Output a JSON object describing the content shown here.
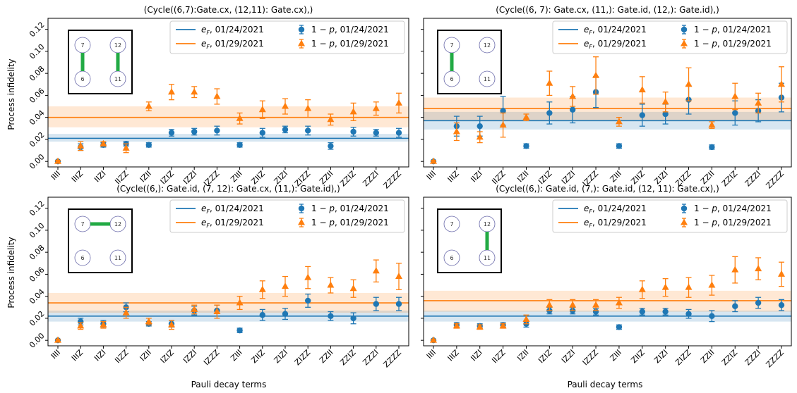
{
  "figure": {
    "xlabel": "Pauli decay terms",
    "ylabel": "Process infidelity",
    "colors": {
      "blue": "#1f77b4",
      "orange": "#ff7f0e",
      "coupler": "#22aa44",
      "qubit_edge": "#6a6aaa"
    }
  },
  "chart_data": [
    {
      "type": "scatter",
      "title": "(Cycle((6,7):Gate.cx, (12,11): Gate.cx),)",
      "xlabel": "",
      "ylabel": "Process infidelity",
      "ylim": [
        -0.005,
        0.13
      ],
      "yticks": [
        "0.00",
        "0.02",
        "0.04",
        "0.06",
        "0.08",
        "0.10",
        "0.12"
      ],
      "categories": [
        "IIII",
        "IIIZ",
        "IIZI",
        "IIZZ",
        "IZII",
        "IZIZ",
        "IZZI",
        "IZZZ",
        "ZIII",
        "ZIIZ",
        "ZIZI",
        "ZIZZ",
        "ZZII",
        "ZZIZ",
        "ZZZI",
        "ZZZZ"
      ],
      "legend": [
        "e_F, 01/24/2021",
        "e_F, 01/29/2021",
        "1 − p, 01/24/2021",
        "1 − p, 01/29/2021"
      ],
      "hlines": [
        {
          "name": "e_F, 01/24/2021",
          "value": 0.021,
          "band": [
            0.018,
            0.025
          ]
        },
        {
          "name": "e_F, 01/29/2021",
          "value": 0.04,
          "band": [
            0.031,
            0.05
          ]
        }
      ],
      "series": [
        {
          "name": "1 − p, 01/24/2021",
          "values": [
            0.0,
            0.013,
            0.015,
            0.016,
            0.015,
            0.026,
            0.027,
            0.028,
            0.015,
            0.026,
            0.029,
            0.028,
            0.014,
            0.027,
            0.026,
            0.026
          ],
          "errors": [
            0.001,
            0.003,
            0.002,
            0.002,
            0.002,
            0.003,
            0.003,
            0.004,
            0.002,
            0.004,
            0.003,
            0.004,
            0.003,
            0.004,
            0.003,
            0.004
          ]
        },
        {
          "name": "1 − p, 01/29/2021",
          "values": [
            0.0,
            0.014,
            0.016,
            0.012,
            0.05,
            0.063,
            0.063,
            0.059,
            0.039,
            0.047,
            0.05,
            0.048,
            0.038,
            0.045,
            0.048,
            0.053
          ],
          "errors": [
            0.001,
            0.004,
            0.002,
            0.004,
            0.004,
            0.007,
            0.005,
            0.007,
            0.005,
            0.008,
            0.007,
            0.008,
            0.005,
            0.008,
            0.006,
            0.009
          ]
        }
      ],
      "inset": {
        "qubits": [
          "7",
          "12",
          "6",
          "11"
        ],
        "couplers": [
          [
            0,
            2
          ],
          [
            1,
            3
          ]
        ]
      }
    },
    {
      "type": "scatter",
      "title": "(Cycle((6, 7): Gate.cx, (11,): Gate.id, (12,): Gate.id),)",
      "xlabel": "",
      "ylabel": "",
      "ylim": [
        -0.005,
        0.13
      ],
      "yticks": [
        "",
        "",
        "",
        "",
        "",
        "",
        ""
      ],
      "categories": [
        "IIII",
        "IIIZ",
        "IIZI",
        "IIZZ",
        "IZII",
        "IZIZ",
        "IZZI",
        "IZZZ",
        "ZIII",
        "ZIIZ",
        "ZIZI",
        "ZIZZ",
        "ZZII",
        "ZZIZ",
        "ZZZI",
        "ZZZZ"
      ],
      "legend": [
        "e_F, 01/24/2021",
        "e_F, 01/29/2021",
        "1 − p, 01/24/2021",
        "1 − p, 01/29/2021"
      ],
      "hlines": [
        {
          "name": "e_F, 01/24/2021",
          "value": 0.037,
          "band": [
            0.029,
            0.045
          ]
        },
        {
          "name": "e_F, 01/29/2021",
          "value": 0.048,
          "band": [
            0.037,
            0.058
          ]
        }
      ],
      "series": [
        {
          "name": "1 − p, 01/24/2021",
          "values": [
            0.0,
            0.032,
            0.032,
            0.046,
            0.014,
            0.044,
            0.047,
            0.063,
            0.014,
            0.042,
            0.043,
            0.056,
            0.013,
            0.044,
            0.046,
            0.058
          ],
          "errors": [
            0.001,
            0.009,
            0.009,
            0.013,
            0.002,
            0.01,
            0.012,
            0.014,
            0.002,
            0.01,
            0.009,
            0.013,
            0.002,
            0.011,
            0.01,
            0.013
          ]
        },
        {
          "name": "1 − p, 01/29/2021",
          "values": [
            0.0,
            0.027,
            0.022,
            0.033,
            0.04,
            0.071,
            0.059,
            0.078,
            0.036,
            0.065,
            0.054,
            0.07,
            0.033,
            0.059,
            0.053,
            0.07
          ],
          "errors": [
            0.001,
            0.008,
            0.005,
            0.011,
            0.003,
            0.011,
            0.009,
            0.017,
            0.004,
            0.012,
            0.009,
            0.015,
            0.003,
            0.012,
            0.009,
            0.016
          ]
        }
      ],
      "inset": {
        "qubits": [
          "7",
          "12",
          "6",
          "11"
        ],
        "couplers": [
          [
            0,
            2
          ]
        ]
      }
    },
    {
      "type": "scatter",
      "title": "(Cycle((6,): Gate.id, (7, 12): Gate.cx, (11,): Gate.id),)",
      "xlabel": "Pauli decay terms",
      "ylabel": "Process infidelity",
      "ylim": [
        -0.005,
        0.13
      ],
      "yticks": [
        "0.00",
        "0.02",
        "0.04",
        "0.06",
        "0.08",
        "0.10",
        "0.12"
      ],
      "categories": [
        "IIII",
        "IIIZ",
        "IIZI",
        "IIZZ",
        "IZII",
        "IZIZ",
        "IZZI",
        "IZZZ",
        "ZIII",
        "ZIIZ",
        "ZIZI",
        "ZIZZ",
        "ZZII",
        "ZZIZ",
        "ZZZI",
        "ZZZZ"
      ],
      "legend": [
        "e_F, 01/24/2021",
        "e_F, 01/29/2021",
        "1 − p, 01/24/2021",
        "1 − p, 01/29/2021"
      ],
      "hlines": [
        {
          "name": "e_F, 01/24/2021",
          "value": 0.022,
          "band": [
            0.017,
            0.027
          ]
        },
        {
          "name": "e_F, 01/29/2021",
          "value": 0.034,
          "band": [
            0.025,
            0.043
          ]
        }
      ],
      "series": [
        {
          "name": "1 − p, 01/24/2021",
          "values": [
            0.0,
            0.017,
            0.015,
            0.03,
            0.015,
            0.015,
            0.027,
            0.027,
            0.009,
            0.023,
            0.024,
            0.036,
            0.022,
            0.02,
            0.033,
            0.033
          ],
          "errors": [
            0.001,
            0.003,
            0.003,
            0.004,
            0.002,
            0.003,
            0.004,
            0.005,
            0.002,
            0.005,
            0.005,
            0.006,
            0.004,
            0.005,
            0.006,
            0.006
          ]
        },
        {
          "name": "1 − p, 01/29/2021",
          "values": [
            0.0,
            0.013,
            0.014,
            0.025,
            0.017,
            0.014,
            0.028,
            0.026,
            0.034,
            0.046,
            0.049,
            0.057,
            0.05,
            0.047,
            0.063,
            0.058
          ],
          "errors": [
            0.001,
            0.003,
            0.003,
            0.005,
            0.003,
            0.004,
            0.004,
            0.006,
            0.006,
            0.008,
            0.009,
            0.01,
            0.007,
            0.008,
            0.01,
            0.012
          ]
        }
      ],
      "inset": {
        "qubits": [
          "7",
          "12",
          "6",
          "11"
        ],
        "couplers": [
          [
            0,
            1
          ]
        ]
      }
    },
    {
      "type": "scatter",
      "title": "(Cycle((6,): Gate.id, (7,): Gate.id, (12, 11): Gate.cx),)",
      "xlabel": "Pauli decay terms",
      "ylabel": "",
      "ylim": [
        -0.005,
        0.13
      ],
      "yticks": [
        "",
        "",
        "",
        "",
        "",
        "",
        ""
      ],
      "categories": [
        "IIII",
        "IIIZ",
        "IIZI",
        "IIZZ",
        "IZII",
        "IZIZ",
        "IZZI",
        "IZZZ",
        "ZIII",
        "ZIIZ",
        "ZIZI",
        "ZIZZ",
        "ZZII",
        "ZZIZ",
        "ZZZI",
        "ZZZZ"
      ],
      "legend": [
        "e_F, 01/24/2021",
        "e_F, 01/29/2021",
        "1 − p, 01/24/2021",
        "1 − p, 01/29/2021"
      ],
      "hlines": [
        {
          "name": "e_F, 01/24/2021",
          "value": 0.022,
          "band": [
            0.017,
            0.027
          ]
        },
        {
          "name": "e_F, 01/29/2021",
          "value": 0.036,
          "band": [
            0.026,
            0.045
          ]
        }
      ],
      "series": [
        {
          "name": "1 − p, 01/24/2021",
          "values": [
            0.0,
            0.014,
            0.013,
            0.014,
            0.015,
            0.027,
            0.027,
            0.026,
            0.012,
            0.026,
            0.026,
            0.024,
            0.022,
            0.031,
            0.034,
            0.032
          ],
          "errors": [
            0.001,
            0.002,
            0.002,
            0.002,
            0.003,
            0.003,
            0.003,
            0.003,
            0.002,
            0.003,
            0.003,
            0.004,
            0.005,
            0.005,
            0.005,
            0.005
          ]
        },
        {
          "name": "1 − p, 01/29/2021",
          "values": [
            0.0,
            0.013,
            0.012,
            0.013,
            0.019,
            0.032,
            0.032,
            0.032,
            0.034,
            0.046,
            0.048,
            0.048,
            0.05,
            0.064,
            0.065,
            0.06
          ],
          "errors": [
            0.001,
            0.002,
            0.002,
            0.002,
            0.004,
            0.005,
            0.005,
            0.005,
            0.005,
            0.008,
            0.008,
            0.009,
            0.009,
            0.012,
            0.01,
            0.011
          ]
        }
      ],
      "inset": {
        "qubits": [
          "7",
          "12",
          "6",
          "11"
        ],
        "couplers": [
          [
            1,
            3
          ]
        ]
      }
    }
  ]
}
